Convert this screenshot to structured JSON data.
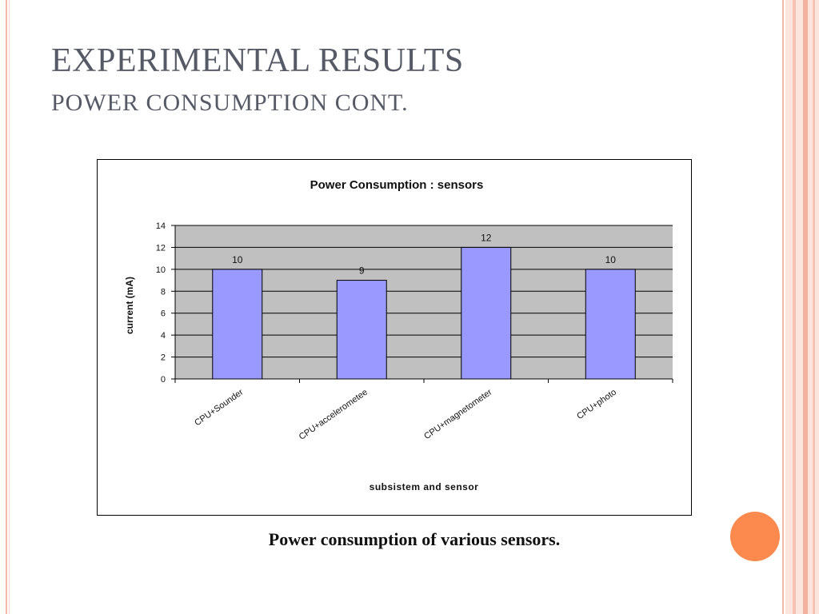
{
  "slide": {
    "title": "EXPERIMENTAL RESULTS",
    "subtitle": "POWER CONSUMPTION CONT.",
    "caption": "Power consumption of various sensors.",
    "accent_color": "#fc8a4e",
    "border_color": "#f4b8a8"
  },
  "chart_data": {
    "type": "bar",
    "title": "Power Consumption : sensors",
    "xlabel": "subsistem and sensor",
    "ylabel": "current (mA)",
    "categories": [
      "CPU+Sounder",
      "CPU+accelerometee",
      "CPU+magnetometer",
      "CPU+photo"
    ],
    "values": [
      10,
      9,
      12,
      10
    ],
    "data_labels": [
      "10",
      "9",
      "12",
      "10"
    ],
    "yticks": [
      0,
      2,
      4,
      6,
      8,
      10,
      12,
      14
    ],
    "ylim": [
      0,
      14
    ],
    "grid": true,
    "legend": "none",
    "bar_color": "#9999ff",
    "plot_background": "#c0c0c0"
  }
}
